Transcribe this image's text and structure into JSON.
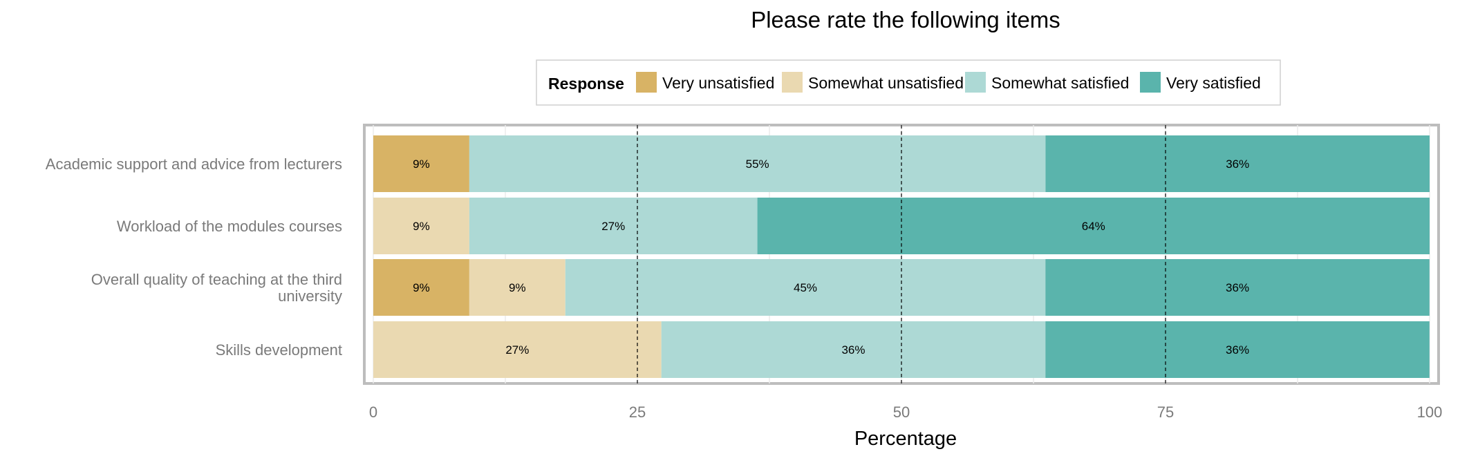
{
  "chart_data": {
    "type": "bar",
    "orientation": "horizontal",
    "stacked": true,
    "title": "Please rate the following items",
    "xlabel": "Percentage",
    "ylabel": "",
    "xlim": [
      0,
      100
    ],
    "x_ticks": [
      "0",
      "25",
      "50",
      "75",
      "100"
    ],
    "grid": true,
    "legend": {
      "title": "Response",
      "placement": "top-center",
      "entries": [
        "Very unsatisfied",
        "Somewhat unsatisfied",
        "Somewhat satisfied",
        "Very satisfied"
      ]
    },
    "categories": [
      "Academic support and advice from lecturers",
      "Workload of the modules courses",
      "Overall quality of teaching at the third university",
      "Skills development"
    ],
    "series": [
      {
        "name": "Very unsatisfied",
        "color": "#D8B365",
        "values": [
          9.09,
          0,
          9.09,
          0
        ],
        "labels": [
          "9%",
          "",
          "9%",
          ""
        ]
      },
      {
        "name": "Somewhat unsatisfied",
        "color": "#EAD9B1",
        "values": [
          0,
          9.09,
          9.09,
          27.27
        ],
        "labels": [
          "",
          "9%",
          "9%",
          "27%"
        ]
      },
      {
        "name": "Somewhat satisfied",
        "color": "#ADD9D5",
        "values": [
          54.55,
          27.27,
          45.45,
          36.36
        ],
        "labels": [
          "55%",
          "27%",
          "45%",
          "36%"
        ]
      },
      {
        "name": "Very satisfied",
        "color": "#5AB4AC",
        "values": [
          36.36,
          63.64,
          36.36,
          36.36
        ],
        "labels": [
          "36%",
          "64%",
          "36%",
          "36%"
        ]
      }
    ]
  }
}
